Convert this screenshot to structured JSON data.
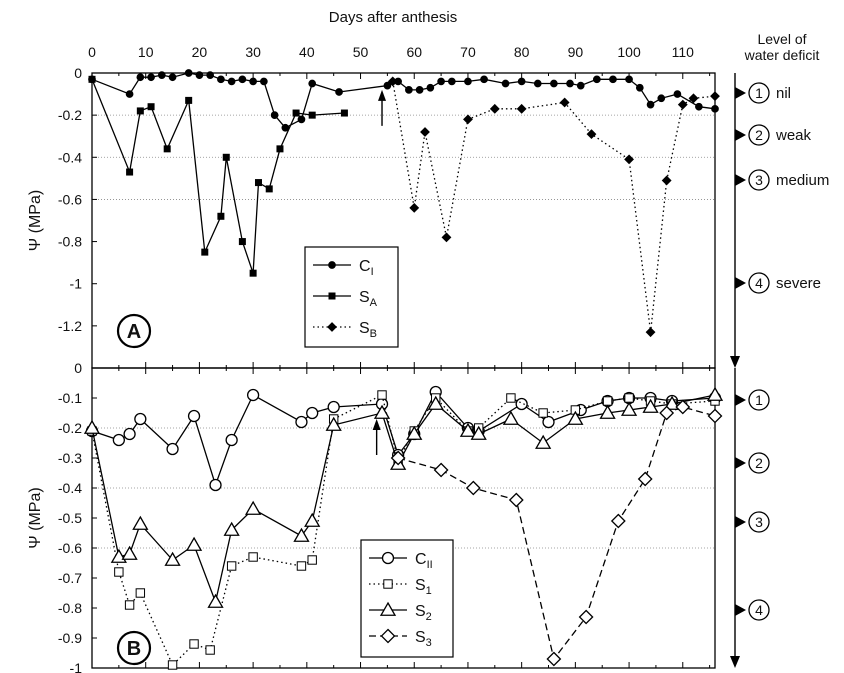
{
  "figure": {
    "top_axis_label": "Days after anthesis",
    "right_heading": [
      "Level of",
      "water deficit"
    ],
    "x_ticks": [
      "0",
      "10",
      "20",
      "30",
      "40",
      "50",
      "60",
      "70",
      "80",
      "90",
      "100",
      "110"
    ],
    "levels_A": [
      {
        "num": "1",
        "name": "nil"
      },
      {
        "num": "2",
        "name": "weak"
      },
      {
        "num": "3",
        "name": "medium"
      },
      {
        "num": "4",
        "name": "severe"
      }
    ],
    "levels_B": [
      {
        "num": "1"
      },
      {
        "num": "2"
      },
      {
        "num": "3"
      },
      {
        "num": "4"
      }
    ]
  },
  "chart_data": [
    {
      "type": "line",
      "panel_label": "A",
      "ylabel": "Ψ (MPa)",
      "xlabel": "Days after anthesis",
      "xlim": [
        0,
        116
      ],
      "ylim": [
        -1.4,
        0
      ],
      "y_ticks": [
        "0",
        "-0.2",
        "-0.4",
        "-0.6",
        "-0.8",
        "-1",
        "-1.2"
      ],
      "y_tick_values": [
        0,
        -0.2,
        -0.4,
        -0.6,
        -0.8,
        -1,
        -1.2
      ],
      "grid": "dotted horizontal at -0.2 and -0.4",
      "legend_position": "center",
      "level_thresholds": [
        -0.2,
        -0.4,
        -0.6
      ],
      "arrow_day": 54,
      "series": [
        {
          "name": "C",
          "sub": "I",
          "marker": "circle-filled",
          "line": "solid",
          "x": [
            0,
            7,
            9,
            11,
            13,
            15,
            18,
            20,
            22,
            24,
            26,
            28,
            30,
            32,
            34,
            36,
            39,
            41,
            46,
            55,
            57,
            59,
            61,
            63,
            65,
            67,
            70,
            73,
            77,
            80,
            83,
            86,
            89,
            91,
            94,
            97,
            100,
            102,
            104,
            106,
            109,
            113,
            116
          ],
          "y": [
            -0.03,
            -0.1,
            -0.02,
            -0.02,
            -0.01,
            -0.02,
            0,
            -0.01,
            -0.01,
            -0.03,
            -0.04,
            -0.03,
            -0.04,
            -0.04,
            -0.2,
            -0.26,
            -0.22,
            -0.05,
            -0.09,
            -0.06,
            -0.04,
            -0.08,
            -0.08,
            -0.07,
            -0.04,
            -0.04,
            -0.04,
            -0.03,
            -0.05,
            -0.04,
            -0.05,
            -0.05,
            -0.05,
            -0.06,
            -0.03,
            -0.03,
            -0.03,
            -0.07,
            -0.15,
            -0.12,
            -0.1,
            -0.16,
            -0.17
          ]
        },
        {
          "name": "S",
          "sub": "A",
          "marker": "square-filled",
          "line": "solid",
          "x": [
            0,
            7,
            9,
            11,
            14,
            18,
            21,
            24,
            25,
            28,
            30,
            31,
            33,
            35,
            38,
            41,
            47
          ],
          "y": [
            -0.03,
            -0.47,
            -0.18,
            -0.16,
            -0.36,
            -0.13,
            -0.85,
            -0.68,
            -0.4,
            -0.8,
            -0.95,
            -0.52,
            -0.55,
            -0.36,
            -0.19,
            -0.2,
            -0.19
          ]
        },
        {
          "name": "S",
          "sub": "B",
          "marker": "diamond-filled",
          "line": "dotted",
          "x": [
            56,
            60,
            62,
            66,
            70,
            75,
            80,
            88,
            93,
            100,
            104,
            107,
            110,
            112,
            116
          ],
          "y": [
            -0.04,
            -0.64,
            -0.28,
            -0.78,
            -0.22,
            -0.17,
            -0.17,
            -0.14,
            -0.29,
            -0.41,
            -1.23,
            -0.51,
            -0.15,
            -0.12,
            -0.11
          ]
        }
      ]
    },
    {
      "type": "line",
      "panel_label": "B",
      "ylabel": "Ψ (MPa)",
      "xlabel": "Days after anthesis",
      "xlim": [
        0,
        116
      ],
      "ylim": [
        -1,
        0
      ],
      "y_ticks": [
        "0",
        "-0.1",
        "-0.2",
        "-0.3",
        "-0.4",
        "-0.5",
        "-0.6",
        "-0.7",
        "-0.8",
        "-0.9",
        "-1"
      ],
      "y_tick_values": [
        0,
        -0.1,
        -0.2,
        -0.3,
        -0.4,
        -0.5,
        -0.6,
        -0.7,
        -0.8,
        -0.9,
        -1
      ],
      "legend_position": "bottom-center",
      "level_thresholds": [
        -0.2,
        -0.4,
        -0.6
      ],
      "arrow_day": 53,
      "series": [
        {
          "name": "C",
          "sub": "II",
          "marker": "circle-open",
          "line": "solid",
          "x": [
            0,
            5,
            7,
            9,
            15,
            19,
            23,
            26,
            30,
            39,
            41,
            45,
            54,
            57,
            60,
            64,
            70,
            72,
            80,
            85,
            91,
            96,
            100,
            104,
            108,
            116
          ],
          "y": [
            -0.21,
            -0.24,
            -0.22,
            -0.17,
            -0.27,
            -0.16,
            -0.39,
            -0.24,
            -0.09,
            -0.18,
            -0.15,
            -0.13,
            -0.12,
            -0.29,
            -0.22,
            -0.08,
            -0.2,
            -0.21,
            -0.12,
            -0.18,
            -0.14,
            -0.11,
            -0.1,
            -0.1,
            -0.11,
            -0.1
          ]
        },
        {
          "name": "S",
          "sub": "1",
          "marker": "square-open",
          "line": "dotted",
          "x": [
            0,
            5,
            7,
            9,
            15,
            19,
            22,
            26,
            30,
            39,
            41,
            45,
            54,
            57,
            60,
            64,
            70,
            72,
            78,
            84,
            90,
            96,
            100,
            104,
            108,
            116
          ],
          "y": [
            -0.21,
            -0.68,
            -0.79,
            -0.75,
            -0.99,
            -0.92,
            -0.94,
            -0.66,
            -0.63,
            -0.66,
            -0.64,
            -0.17,
            -0.09,
            -0.31,
            -0.21,
            -0.1,
            -0.21,
            -0.2,
            -0.1,
            -0.15,
            -0.14,
            -0.11,
            -0.1,
            -0.11,
            -0.12,
            -0.11
          ]
        },
        {
          "name": "S",
          "sub": "2",
          "marker": "triangle-open",
          "line": "solid",
          "x": [
            0,
            5,
            7,
            9,
            15,
            19,
            23,
            26,
            30,
            39,
            41,
            45,
            54,
            57,
            60,
            64,
            70,
            72,
            78,
            84,
            90,
            96,
            100,
            104,
            108,
            116
          ],
          "y": [
            -0.2,
            -0.63,
            -0.62,
            -0.52,
            -0.64,
            -0.59,
            -0.78,
            -0.54,
            -0.47,
            -0.56,
            -0.51,
            -0.19,
            -0.15,
            -0.32,
            -0.22,
            -0.12,
            -0.21,
            -0.22,
            -0.17,
            -0.25,
            -0.17,
            -0.15,
            -0.14,
            -0.13,
            -0.12,
            -0.09
          ]
        },
        {
          "name": "S",
          "sub": "3",
          "marker": "diamond-open",
          "line": "dashed",
          "x": [
            57,
            65,
            71,
            79,
            86,
            92,
            98,
            103,
            107,
            110,
            116
          ],
          "y": [
            -0.3,
            -0.34,
            -0.4,
            -0.44,
            -0.97,
            -0.83,
            -0.51,
            -0.37,
            -0.15,
            -0.13,
            -0.16
          ]
        }
      ]
    }
  ]
}
